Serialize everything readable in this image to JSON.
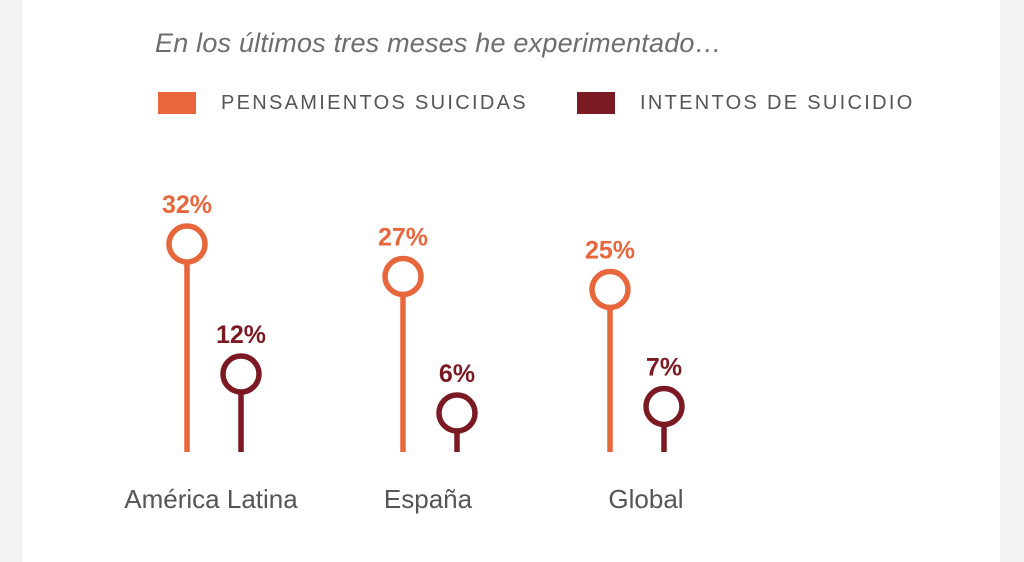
{
  "chart_data": {
    "type": "lollipop",
    "title": "En los últimos tres meses he experimentado…",
    "categories": [
      "América Latina",
      "España",
      "Global"
    ],
    "series": [
      {
        "name": "PENSAMIENTOS SUICIDAS",
        "color": "#e8663c",
        "values": [
          32,
          27,
          25
        ],
        "labels": [
          "32%",
          "27%",
          "25%"
        ]
      },
      {
        "name": "INTENTOS DE SUICIDIO",
        "color": "#7c1a24",
        "values": [
          12,
          6,
          7
        ],
        "labels": [
          "12%",
          "6%",
          "7%"
        ]
      }
    ],
    "legend_position": "top",
    "grid": false
  }
}
